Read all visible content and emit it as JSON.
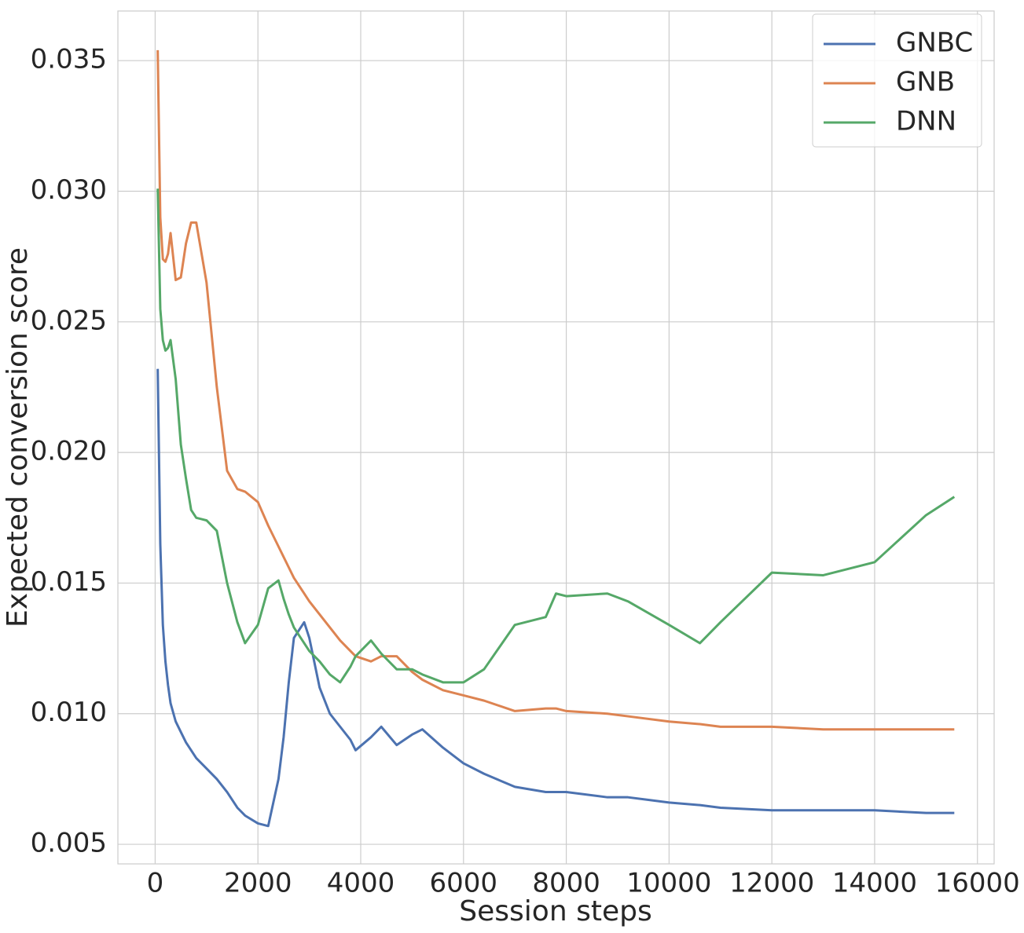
{
  "chart_data": {
    "type": "line",
    "x_label": "Session steps",
    "y_label": "Expected conversion score",
    "x": [
      50,
      100,
      150,
      200,
      250,
      300,
      400,
      500,
      600,
      700,
      800,
      1000,
      1200,
      1400,
      1600,
      1750,
      2000,
      2200,
      2400,
      2500,
      2600,
      2700,
      2900,
      3000,
      3200,
      3400,
      3600,
      3800,
      3900,
      4200,
      4400,
      4700,
      5000,
      5200,
      5600,
      6000,
      6400,
      7000,
      7600,
      7800,
      8000,
      8800,
      9200,
      10000,
      10600,
      11000,
      12000,
      13000,
      14000,
      15000,
      15550
    ],
    "series": [
      {
        "name": "GNBC",
        "color": "#4c72b0",
        "values": [
          0.0232,
          0.0165,
          0.0134,
          0.012,
          0.0111,
          0.0104,
          0.0097,
          0.0093,
          0.0089,
          0.0086,
          0.0083,
          0.0079,
          0.0075,
          0.007,
          0.0064,
          0.0061,
          0.0058,
          0.0057,
          0.0075,
          0.0091,
          0.0112,
          0.0129,
          0.0135,
          0.0129,
          0.011,
          0.01,
          0.0095,
          0.009,
          0.0086,
          0.0091,
          0.0095,
          0.0088,
          0.0092,
          0.0094,
          0.0087,
          0.0081,
          0.0077,
          0.0072,
          0.007,
          0.007,
          0.007,
          0.0068,
          0.0068,
          0.0066,
          0.0065,
          0.0064,
          0.0063,
          0.0063,
          0.0063,
          0.0062,
          0.0062
        ]
      },
      {
        "name": "GNB",
        "color": "#dd8452",
        "values": [
          0.0354,
          0.029,
          0.0274,
          0.0273,
          0.0276,
          0.0284,
          0.0266,
          0.0267,
          0.028,
          0.0288,
          0.0288,
          0.0265,
          0.0225,
          0.0193,
          0.0186,
          0.0185,
          0.0181,
          0.0172,
          0.0164,
          0.016,
          0.0156,
          0.0152,
          0.0146,
          0.0143,
          0.0138,
          0.0133,
          0.0128,
          0.0124,
          0.0122,
          0.012,
          0.0122,
          0.0122,
          0.0116,
          0.0113,
          0.0109,
          0.0107,
          0.0105,
          0.0101,
          0.0102,
          0.0102,
          0.0101,
          0.01,
          0.0099,
          0.0097,
          0.0096,
          0.0095,
          0.0095,
          0.0094,
          0.0094,
          0.0094,
          0.0094
        ]
      },
      {
        "name": "DNN",
        "color": "#55a868",
        "values": [
          0.0301,
          0.0255,
          0.0243,
          0.0239,
          0.024,
          0.0243,
          0.0228,
          0.0203,
          0.019,
          0.0178,
          0.0175,
          0.0174,
          0.017,
          0.015,
          0.0135,
          0.0127,
          0.0134,
          0.0148,
          0.0151,
          0.0144,
          0.0138,
          0.0133,
          0.0127,
          0.0124,
          0.012,
          0.0115,
          0.0112,
          0.0118,
          0.0122,
          0.0128,
          0.0123,
          0.0117,
          0.0117,
          0.0115,
          0.0112,
          0.0112,
          0.0117,
          0.0134,
          0.0137,
          0.0146,
          0.0145,
          0.0146,
          0.0143,
          0.0134,
          0.0127,
          0.0135,
          0.0154,
          0.0153,
          0.0158,
          0.0176,
          0.0183
        ]
      }
    ],
    "xlim": [
      -725,
      16325
    ],
    "ylim": [
      0.00425,
      0.0369
    ],
    "xticks": [
      0,
      2000,
      4000,
      6000,
      8000,
      10000,
      12000,
      14000,
      16000
    ],
    "yticks": [
      0.005,
      {
        "value": 0.01,
        "label": "0.010"
      },
      0.015,
      {
        "value": 0.02,
        "label": "0.020"
      },
      0.025,
      {
        "value": 0.03,
        "label": "0.030"
      },
      0.035
    ],
    "grid": true,
    "legend": "upper right"
  }
}
